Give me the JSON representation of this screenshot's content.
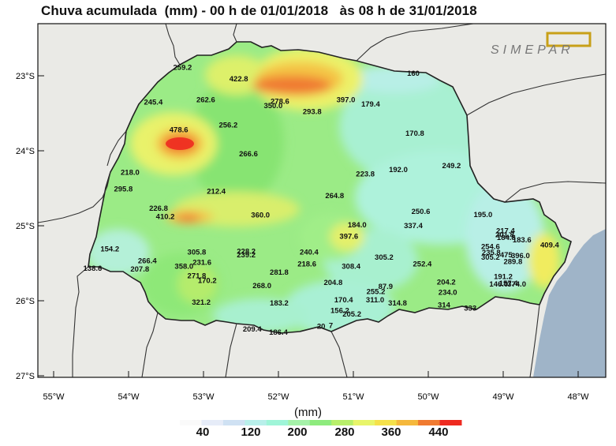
{
  "title": "Chuva acumulada  (mm) - 00 h de 01/01/2018   às 08 h de 31/01/2018",
  "logo_text": "SIMEPAR",
  "axes": {
    "y_ticks": [
      "23°S",
      "24°S",
      "25°S",
      "26°S",
      "27°S"
    ],
    "x_ticks": [
      "55°W",
      "54°W",
      "53°W",
      "52°W",
      "51°W",
      "50°W",
      "49°W",
      "48°W"
    ]
  },
  "colorbar": {
    "unit": "(mm)",
    "labels": [
      "40",
      "120",
      "200",
      "280",
      "360",
      "440"
    ],
    "colors": [
      "#fafafa",
      "#e6ecf8",
      "#cfe1f3",
      "#b8efea",
      "#9ff5d8",
      "#a5f2a9",
      "#8eeb7d",
      "#b8ef6a",
      "#e8f56a",
      "#f5e14a",
      "#f5b83c",
      "#f07a30",
      "#ee2a20"
    ]
  },
  "colors": {
    "background": "#eaeae6",
    "state_low": "#a5f2a9",
    "state_mid": "#8eeb7d",
    "ocean": "#9fb4c8",
    "border": "#222222"
  },
  "stations": [
    {
      "v": "259.2",
      "lon": -53.28,
      "lat": -22.89
    },
    {
      "v": "422.8",
      "lon": -52.53,
      "lat": -23.04
    },
    {
      "v": "160",
      "lon": -50.2,
      "lat": -22.97
    },
    {
      "v": "245.4",
      "lon": -53.67,
      "lat": -23.35
    },
    {
      "v": "262.6",
      "lon": -52.97,
      "lat": -23.32
    },
    {
      "v": "278.6",
      "lon": -51.98,
      "lat": -23.34
    },
    {
      "v": "350.0",
      "lon": -52.07,
      "lat": -23.4
    },
    {
      "v": "397.0",
      "lon": -51.1,
      "lat": -23.32
    },
    {
      "v": "293.8",
      "lon": -51.55,
      "lat": -23.48
    },
    {
      "v": "179.4",
      "lon": -50.77,
      "lat": -23.38
    },
    {
      "v": "478.6",
      "lon": -53.33,
      "lat": -23.72
    },
    {
      "v": "256.2",
      "lon": -52.67,
      "lat": -23.66
    },
    {
      "v": "170.8",
      "lon": -50.18,
      "lat": -23.77
    },
    {
      "v": "266.6",
      "lon": -52.4,
      "lat": -24.04
    },
    {
      "v": "218.0",
      "lon": -53.98,
      "lat": -24.29
    },
    {
      "v": "223.8",
      "lon": -50.84,
      "lat": -24.31
    },
    {
      "v": "192.0",
      "lon": -50.4,
      "lat": -24.25
    },
    {
      "v": "249.2",
      "lon": -49.69,
      "lat": -24.2
    },
    {
      "v": "295.8",
      "lon": -54.07,
      "lat": -24.51
    },
    {
      "v": "212.4",
      "lon": -52.83,
      "lat": -24.54
    },
    {
      "v": "264.8",
      "lon": -51.25,
      "lat": -24.6
    },
    {
      "v": "226.8",
      "lon": -53.6,
      "lat": -24.77
    },
    {
      "v": "410.2",
      "lon": -53.51,
      "lat": -24.88
    },
    {
      "v": "360.0",
      "lon": -52.24,
      "lat": -24.86
    },
    {
      "v": "250.6",
      "lon": -50.1,
      "lat": -24.81
    },
    {
      "v": "195.0",
      "lon": -49.27,
      "lat": -24.85
    },
    {
      "v": "184.0",
      "lon": -50.95,
      "lat": -24.99
    },
    {
      "v": "337.4",
      "lon": -50.2,
      "lat": -25.0
    },
    {
      "v": "397.6",
      "lon": -51.06,
      "lat": -25.14
    },
    {
      "v": "217.4",
      "lon": -48.97,
      "lat": -25.07
    },
    {
      "v": "201.8",
      "lon": -48.98,
      "lat": -25.12
    },
    {
      "v": "184.8",
      "lon": -48.96,
      "lat": -25.16
    },
    {
      "v": "183.6",
      "lon": -48.75,
      "lat": -25.19
    },
    {
      "v": "154.2",
      "lon": -54.25,
      "lat": -25.31
    },
    {
      "v": "305.8",
      "lon": -53.09,
      "lat": -25.35
    },
    {
      "v": "228.2",
      "lon": -52.43,
      "lat": -25.34
    },
    {
      "v": "239.2",
      "lon": -52.43,
      "lat": -25.39
    },
    {
      "v": "240.4",
      "lon": -51.59,
      "lat": -25.35
    },
    {
      "v": "254.6",
      "lon": -49.17,
      "lat": -25.28
    },
    {
      "v": "409.4",
      "lon": -48.38,
      "lat": -25.26
    },
    {
      "v": "235.8",
      "lon": -49.16,
      "lat": -25.36
    },
    {
      "v": "266.4",
      "lon": -53.75,
      "lat": -25.47
    },
    {
      "v": "231.6",
      "lon": -53.02,
      "lat": -25.49
    },
    {
      "v": "305.2",
      "lon": -50.59,
      "lat": -25.42
    },
    {
      "v": "305.2",
      "lon": -49.17,
      "lat": -25.42
    },
    {
      "v": "475",
      "lon": -48.96,
      "lat": -25.39
    },
    {
      "v": "396.0",
      "lon": -48.77,
      "lat": -25.4
    },
    {
      "v": "289.8",
      "lon": -48.87,
      "lat": -25.48
    },
    {
      "v": "358.0",
      "lon": -53.26,
      "lat": -25.54
    },
    {
      "v": "218.6",
      "lon": -51.62,
      "lat": -25.51
    },
    {
      "v": "308.4",
      "lon": -51.03,
      "lat": -25.54
    },
    {
      "v": "252.4",
      "lon": -50.08,
      "lat": -25.51
    },
    {
      "v": "138.6",
      "lon": -54.48,
      "lat": -25.57
    },
    {
      "v": "207.8",
      "lon": -53.85,
      "lat": -25.58
    },
    {
      "v": "281.8",
      "lon": -51.99,
      "lat": -25.62
    },
    {
      "v": "271.8",
      "lon": -53.09,
      "lat": -25.67
    },
    {
      "v": "170.2",
      "lon": -52.95,
      "lat": -25.73
    },
    {
      "v": "191.2",
      "lon": -49.0,
      "lat": -25.68
    },
    {
      "v": "204.8",
      "lon": -51.27,
      "lat": -25.76
    },
    {
      "v": "204.2",
      "lon": -49.76,
      "lat": -25.75
    },
    {
      "v": "146.0",
      "lon": -49.06,
      "lat": -25.78
    },
    {
      "v": "157.4",
      "lon": -48.93,
      "lat": -25.77
    },
    {
      "v": "374.0",
      "lon": -48.82,
      "lat": -25.78
    },
    {
      "v": "268.0",
      "lon": -52.22,
      "lat": -25.8
    },
    {
      "v": "87.9",
      "lon": -50.57,
      "lat": -25.81
    },
    {
      "v": "255.2",
      "lon": -50.7,
      "lat": -25.88
    },
    {
      "v": "234.0",
      "lon": -49.74,
      "lat": -25.89
    },
    {
      "v": "321.2",
      "lon": -53.03,
      "lat": -26.02
    },
    {
      "v": "170.4",
      "lon": -51.13,
      "lat": -25.99
    },
    {
      "v": "183.2",
      "lon": -51.99,
      "lat": -26.03
    },
    {
      "v": "311.0",
      "lon": -50.71,
      "lat": -25.99
    },
    {
      "v": "314.8",
      "lon": -50.41,
      "lat": -26.03
    },
    {
      "v": "314",
      "lon": -49.79,
      "lat": -26.06
    },
    {
      "v": "333",
      "lon": -49.44,
      "lat": -26.1
    },
    {
      "v": "156.2",
      "lon": -51.18,
      "lat": -26.13
    },
    {
      "v": "205.2",
      "lon": -51.02,
      "lat": -26.18
    },
    {
      "v": "209.4",
      "lon": -52.35,
      "lat": -26.38
    },
    {
      "v": "186.4",
      "lon": -52.0,
      "lat": -26.42
    },
    {
      "v": "20",
      "lon": -51.43,
      "lat": -26.34
    },
    {
      "v": "7",
      "lon": -51.3,
      "lat": -26.33
    }
  ]
}
